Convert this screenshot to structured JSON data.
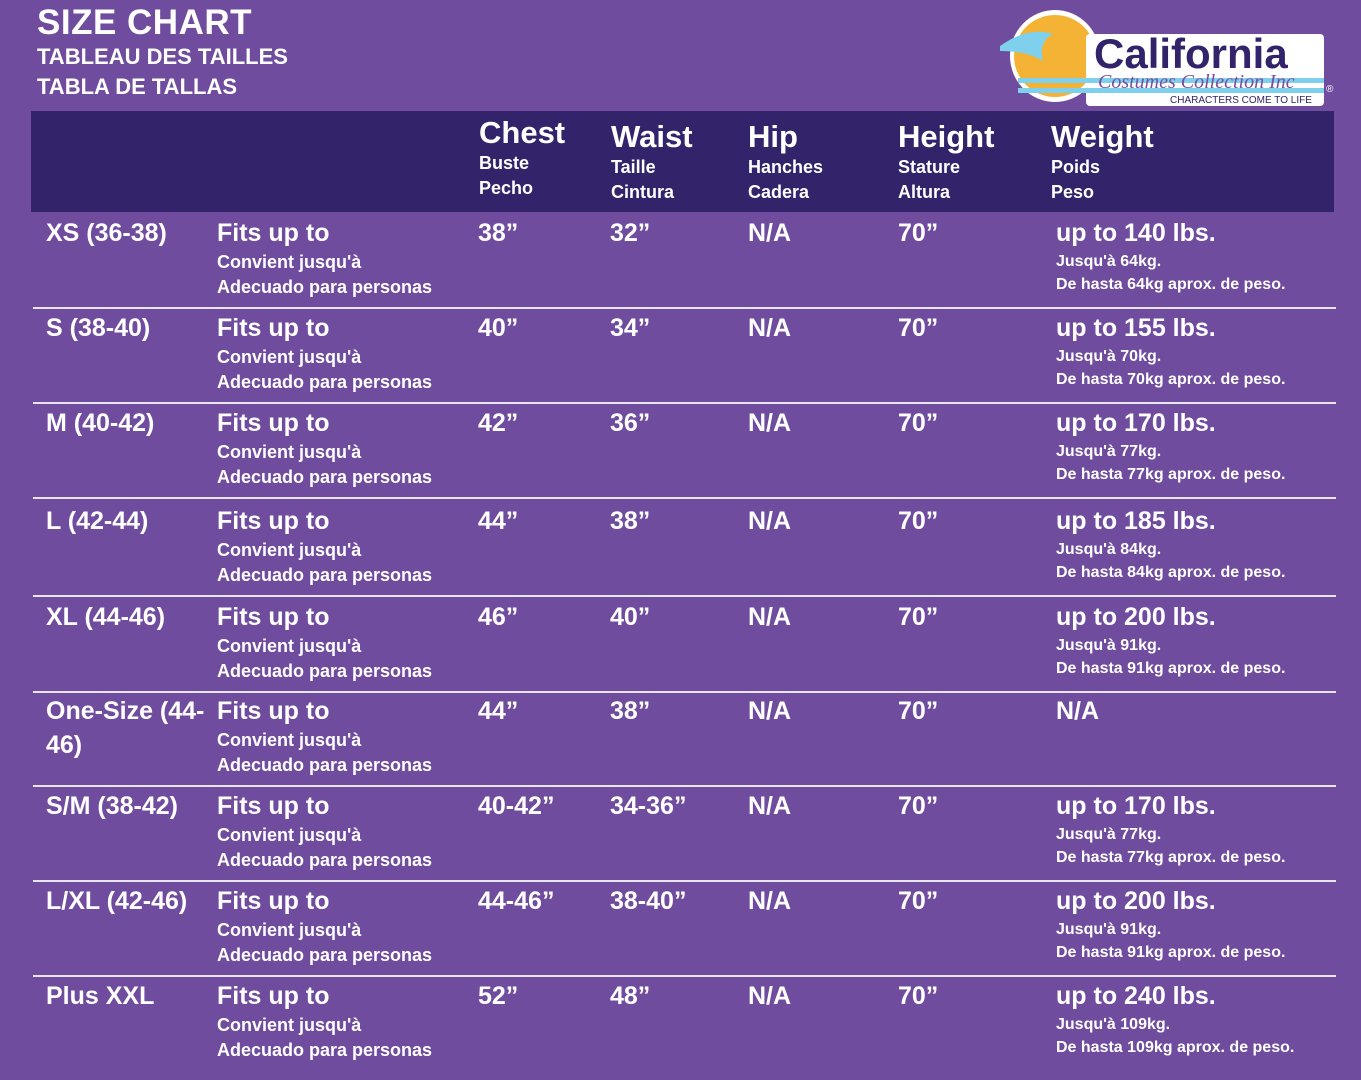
{
  "title": {
    "main": "SIZE CHART",
    "fr": "TABLEAU DES TAILLES",
    "es": "TABLA DE TALLAS"
  },
  "logo": {
    "name": "California",
    "sub": "Costumes Collection Inc",
    "tagline": "CHARACTERS COME TO LIFE",
    "colors": {
      "sun": "#f5b335",
      "wave": "#7fd0ec",
      "text": "#33236a"
    }
  },
  "colors": {
    "background": "#6f4c9d",
    "header": "#33236a"
  },
  "header": [
    {
      "main": "Chest",
      "fr": "Buste",
      "es": "Pecho"
    },
    {
      "main": "Waist",
      "fr": "Taille",
      "es": "Cintura"
    },
    {
      "main": "Hip",
      "fr": "Hanches",
      "es": "Cadera"
    },
    {
      "main": "Height",
      "fr": "Stature",
      "es": "Altura"
    },
    {
      "main": "Weight",
      "fr": "Poids",
      "es": "Peso"
    }
  ],
  "fits": {
    "en": "Fits up to",
    "fr": "Convient jusqu'à",
    "es": "Adecuado para personas"
  },
  "rows": [
    {
      "size": "XS (36-38)",
      "chest": "38”",
      "waist": "32”",
      "hip": "N/A",
      "height": "70”",
      "weight": "up to 140 lbs.",
      "weight_fr": "Jusqu'à 64kg.",
      "weight_es": "De hasta 64kg aprox. de peso."
    },
    {
      "size": "S (38-40)",
      "chest": "40”",
      "waist": "34”",
      "hip": "N/A",
      "height": "70”",
      "weight": "up to 155 lbs.",
      "weight_fr": "Jusqu'à 70kg.",
      "weight_es": "De hasta 70kg aprox. de peso."
    },
    {
      "size": "M (40-42)",
      "chest": "42”",
      "waist": "36”",
      "hip": "N/A",
      "height": "70”",
      "weight": "up to 170 lbs.",
      "weight_fr": "Jusqu'à 77kg.",
      "weight_es": "De hasta 77kg aprox. de peso."
    },
    {
      "size": "L (42-44)",
      "chest": "44”",
      "waist": "38”",
      "hip": "N/A",
      "height": "70”",
      "weight": "up to 185 lbs.",
      "weight_fr": "Jusqu'à 84kg.",
      "weight_es": "De hasta 84kg aprox. de peso."
    },
    {
      "size": "XL (44-46)",
      "chest": "46”",
      "waist": "40”",
      "hip": "N/A",
      "height": "70”",
      "weight": "up to 200 lbs.",
      "weight_fr": "Jusqu'à 91kg.",
      "weight_es": "De hasta 91kg aprox. de peso."
    },
    {
      "size": "One-Size (44-46)",
      "chest": "44”",
      "waist": "38”",
      "hip": "N/A",
      "height": "70”",
      "weight": "N/A",
      "weight_fr": "",
      "weight_es": ""
    },
    {
      "size": "S/M (38-42)",
      "chest": "40-42”",
      "waist": "34-36”",
      "hip": "N/A",
      "height": "70”",
      "weight": "up to 170 lbs.",
      "weight_fr": "Jusqu'à 77kg.",
      "weight_es": "De hasta 77kg aprox. de peso."
    },
    {
      "size": "L/XL (42-46)",
      "chest": "44-46”",
      "waist": "38-40”",
      "hip": "N/A",
      "height": "70”",
      "weight": "up to 200 lbs.",
      "weight_fr": "Jusqu'à 91kg.",
      "weight_es": "De hasta 91kg aprox. de peso."
    },
    {
      "size": "Plus XXL",
      "chest": "52”",
      "waist": "48”",
      "hip": "N/A",
      "height": "70”",
      "weight": "up to 240 lbs.",
      "weight_fr": "Jusqu'à 109kg.",
      "weight_es": "De hasta 109kg aprox. de peso."
    }
  ]
}
